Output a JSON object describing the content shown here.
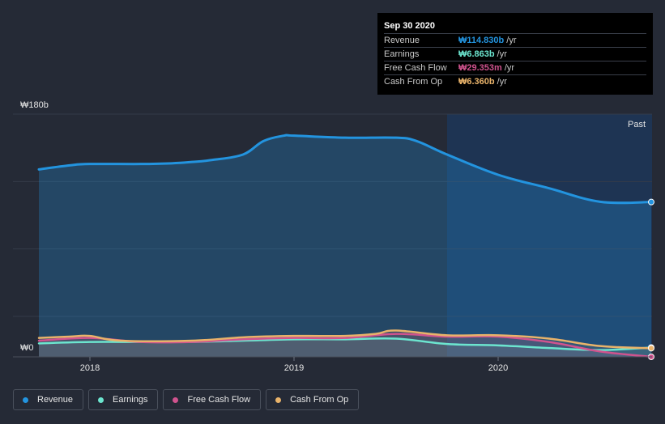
{
  "tooltip": {
    "date": "Sep 30 2020",
    "rows": [
      {
        "label": "Revenue",
        "value": "₩114.830b",
        "unit": "/yr",
        "color": "#2394df"
      },
      {
        "label": "Earnings",
        "value": "₩6.863b",
        "unit": "/yr",
        "color": "#6ce5cf"
      },
      {
        "label": "Free Cash Flow",
        "value": "₩29.353m",
        "unit": "/yr",
        "color": "#d0538e"
      },
      {
        "label": "Cash From Op",
        "value": "₩6.360b",
        "unit": "/yr",
        "color": "#e9b36a"
      }
    ]
  },
  "legend": [
    {
      "label": "Revenue",
      "color": "#2394df"
    },
    {
      "label": "Earnings",
      "color": "#6ce5cf"
    },
    {
      "label": "Free Cash Flow",
      "color": "#d0538e"
    },
    {
      "label": "Cash From Op",
      "color": "#e9b36a"
    }
  ],
  "chart_data": {
    "type": "area",
    "y_top_label": "₩180b",
    "y_zero_label": "₩0",
    "past_label": "Past",
    "ylim": [
      0,
      180
    ],
    "unit": "KRW billions",
    "xlim": [
      2017.75,
      2020.75
    ],
    "past_start": 2019.75,
    "x_ticks": [
      {
        "value": 2018,
        "label": "2018"
      },
      {
        "value": 2019,
        "label": "2019"
      },
      {
        "value": 2020,
        "label": "2020"
      }
    ],
    "series": [
      {
        "name": "Revenue",
        "color": "#2394df",
        "x": [
          2017.75,
          2017.9,
          2018.0,
          2018.25,
          2018.4,
          2018.5,
          2018.6,
          2018.75,
          2018.85,
          2018.95,
          2019.0,
          2019.25,
          2019.5,
          2019.6,
          2019.75,
          2020.0,
          2020.25,
          2020.5,
          2020.75
        ],
        "values": [
          139,
          142,
          143,
          143,
          143.5,
          144.5,
          146,
          150,
          160,
          164,
          164,
          162.5,
          162.5,
          160,
          150,
          135,
          125,
          115,
          114.8
        ]
      },
      {
        "name": "Earnings",
        "color": "#6ce5cf",
        "x": [
          2017.75,
          2018.0,
          2018.25,
          2018.5,
          2018.75,
          2019.0,
          2019.25,
          2019.5,
          2019.75,
          2020.0,
          2020.25,
          2020.5,
          2020.75
        ],
        "values": [
          10,
          11,
          11,
          11,
          12,
          13,
          13,
          13.5,
          9.5,
          8.5,
          6.5,
          5,
          6.9
        ]
      },
      {
        "name": "Free Cash Flow",
        "color": "#d0538e",
        "x": [
          2017.75,
          2018.0,
          2018.25,
          2018.5,
          2018.75,
          2019.0,
          2019.25,
          2019.5,
          2019.75,
          2020.0,
          2020.25,
          2020.5,
          2020.75
        ],
        "values": [
          12,
          14,
          11,
          11,
          13,
          14,
          14,
          17,
          15,
          15,
          11,
          4,
          0.03
        ]
      },
      {
        "name": "Cash From Op",
        "color": "#e9b36a",
        "x": [
          2017.75,
          2017.9,
          2018.0,
          2018.15,
          2018.5,
          2018.75,
          2019.0,
          2019.25,
          2019.4,
          2019.5,
          2019.75,
          2020.0,
          2020.25,
          2020.5,
          2020.75
        ],
        "values": [
          14,
          15,
          15.5,
          12,
          12,
          14.5,
          15.5,
          15.5,
          17,
          19.5,
          16,
          16,
          13.5,
          8,
          6.4
        ]
      }
    ]
  }
}
